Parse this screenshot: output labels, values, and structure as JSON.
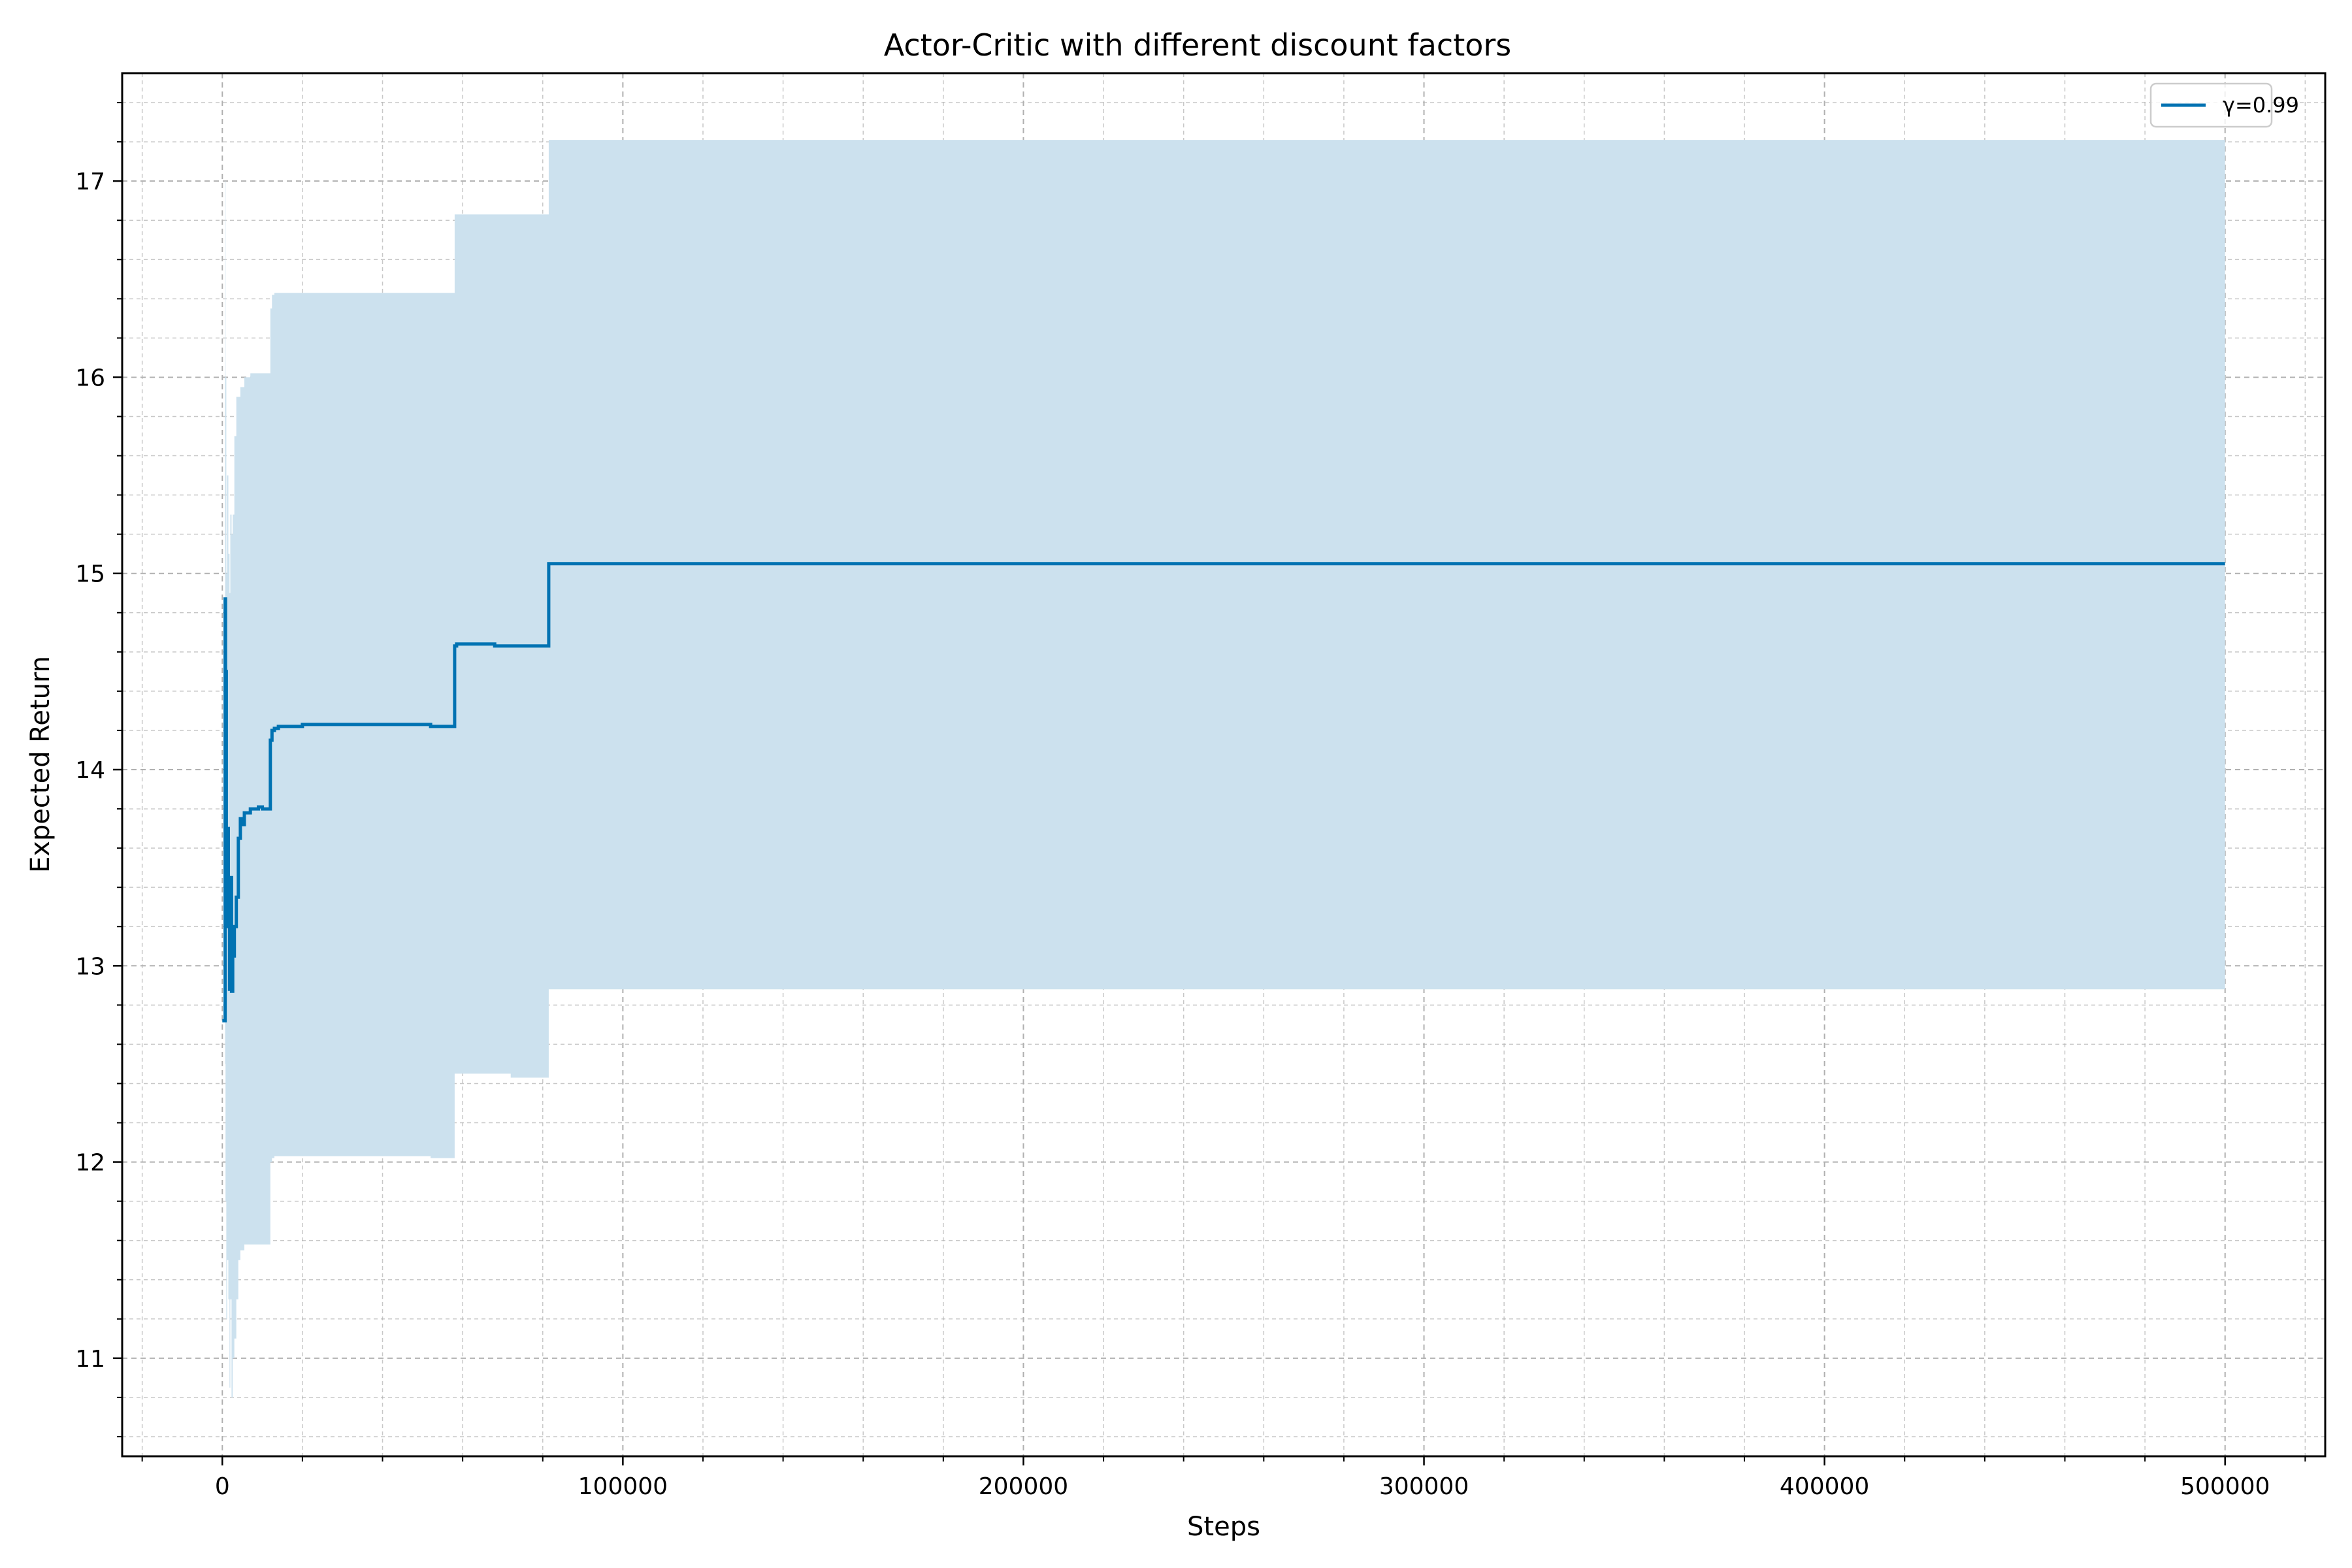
{
  "chart_data": {
    "type": "line",
    "title": "Actor-Critic with different discount factors",
    "xlabel": "Steps",
    "ylabel": "Expected Return",
    "xlim": [
      -25000,
      525000
    ],
    "ylim": [
      10.5,
      17.55
    ],
    "xticks": [
      0,
      100000,
      200000,
      300000,
      400000,
      500000
    ],
    "xtick_labels": [
      "0",
      "100000",
      "200000",
      "300000",
      "400000",
      "500000"
    ],
    "yticks": [
      11,
      12,
      13,
      14,
      15,
      16,
      17
    ],
    "ytick_labels": [
      "11",
      "12",
      "13",
      "14",
      "15",
      "16",
      "17"
    ],
    "grid": true,
    "minor_grid": true,
    "legend_position": "top-right",
    "colors": {
      "line": "#0072B2",
      "band": "#cce1ee",
      "grid": "#b0b0b0"
    },
    "series": [
      {
        "name": "γ=0.99",
        "x": [
          0,
          600,
          700,
          800,
          1000,
          1200,
          1500,
          1800,
          2000,
          2300,
          2600,
          3000,
          3500,
          4000,
          4500,
          5000,
          5500,
          6000,
          7000,
          8000,
          9000,
          10000,
          11000,
          11800,
          12000,
          12400,
          13000,
          14000,
          15000,
          20000,
          30000,
          40000,
          50000,
          52000,
          55000,
          57500,
          58000,
          58500,
          65000,
          68000,
          72000,
          76000,
          80000,
          81000,
          81500,
          82000,
          100000,
          200000,
          300000,
          400000,
          500000
        ],
        "y": [
          12.72,
          12.72,
          14.87,
          14.5,
          13.2,
          13.7,
          13.25,
          12.88,
          13.45,
          12.87,
          13.05,
          13.2,
          13.35,
          13.65,
          13.75,
          13.72,
          13.78,
          13.78,
          13.8,
          13.8,
          13.81,
          13.8,
          13.8,
          13.8,
          14.15,
          14.2,
          14.21,
          14.22,
          14.22,
          14.23,
          14.23,
          14.23,
          14.23,
          14.22,
          14.22,
          14.22,
          14.63,
          14.64,
          14.64,
          14.63,
          14.63,
          14.63,
          14.63,
          14.63,
          15.05,
          15.05,
          15.05,
          15.05,
          15.05,
          15.05,
          15.05
        ],
        "lower": [
          12.72,
          12.72,
          12.5,
          11.8,
          11.2,
          11.5,
          11.3,
          10.85,
          11.3,
          10.8,
          11.0,
          11.1,
          11.3,
          11.5,
          11.55,
          11.55,
          11.58,
          11.58,
          11.58,
          11.58,
          11.58,
          11.58,
          11.58,
          11.58,
          12.0,
          12.02,
          12.03,
          12.03,
          12.03,
          12.03,
          12.03,
          12.03,
          12.03,
          12.02,
          12.02,
          12.02,
          12.45,
          12.45,
          12.45,
          12.45,
          12.43,
          12.43,
          12.43,
          12.43,
          12.88,
          12.88,
          12.88,
          12.88,
          12.88,
          12.88,
          12.88
        ],
        "upper": [
          12.72,
          12.72,
          17.0,
          16.0,
          15.0,
          15.5,
          15.1,
          14.9,
          15.3,
          15.2,
          15.3,
          15.7,
          15.9,
          15.9,
          15.95,
          15.95,
          16.0,
          16.0,
          16.02,
          16.02,
          16.02,
          16.02,
          16.02,
          16.02,
          16.35,
          16.42,
          16.43,
          16.43,
          16.43,
          16.43,
          16.43,
          16.43,
          16.43,
          16.43,
          16.43,
          16.43,
          16.83,
          16.83,
          16.83,
          16.83,
          16.83,
          16.83,
          16.83,
          16.83,
          17.21,
          17.21,
          17.21,
          17.21,
          17.21,
          17.21,
          17.21
        ]
      }
    ]
  }
}
